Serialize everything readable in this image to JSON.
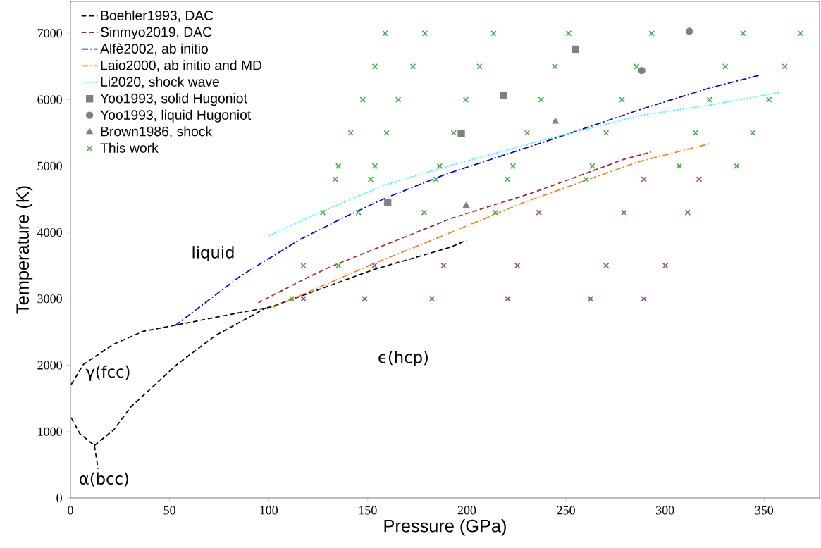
{
  "chart_data": {
    "type": "line",
    "xlabel": "Pressure (GPa)",
    "ylabel": "Temperature (K)",
    "xlim": [
      0,
      378
    ],
    "ylim": [
      0,
      7480
    ],
    "xticks": [
      0,
      50,
      100,
      150,
      200,
      250,
      300,
      350
    ],
    "yticks": [
      0,
      1000,
      2000,
      3000,
      4000,
      5000,
      6000,
      7000
    ],
    "grid": false,
    "legend": "top left",
    "series": [
      {
        "name": "Boehler1993, DAC",
        "color": "#000000",
        "line_style": "dashed",
        "x": [
          0.4,
          6.5,
          21.3,
          36.6,
          52.5,
          78.3,
          101.5,
          153,
          192,
          199.7,
          null,
          12.1,
          21.9,
          30.4,
          53.7,
          73.3,
          98.5,
          null,
          0.4,
          4.7,
          12.1,
          null,
          12.1,
          13.9
        ],
        "values": [
          1710,
          2010,
          2310,
          2510,
          2600,
          2750,
          2880,
          3440,
          3780,
          3880,
          null,
          790,
          1030,
          1370,
          2010,
          2450,
          2860,
          null,
          1210,
          970,
          790,
          null,
          790,
          440
        ]
      },
      {
        "name": "Sinmyo2019, DAC",
        "color": "#a52a2a",
        "line_style": "dashed",
        "x": [
          94.8,
          117.5,
          131,
          192,
          232.5,
          268.3,
          279,
          293
        ],
        "values": [
          2940,
          3290,
          3480,
          4210,
          4590,
          4980,
          5100,
          5210
        ]
      },
      {
        "name": "Alfè2002, ab initio",
        "color": "#0000ff",
        "line_style": "dashdot",
        "x": [
          52.5,
          85.6,
          115.6,
          138.3,
          159.1,
          189.7,
          239.7,
          287.3,
          323,
          348
        ],
        "values": [
          2590,
          3340,
          3890,
          4230,
          4520,
          4880,
          5370,
          5850,
          6180,
          6370
        ]
      },
      {
        "name": "Laio2000, ab initio and MD",
        "color": "#ff7f0e",
        "line_style": "dashdot",
        "x": [
          102.1,
          153,
          192,
          227.8,
          258.7,
          287.3,
          323
        ],
        "values": [
          2870,
          3530,
          4000,
          4440,
          4770,
          5070,
          5340
        ]
      },
      {
        "name": "Li2020, shock wave",
        "color": "#00ffff",
        "line_style": "dotted",
        "x": [
          100.3,
          127.3,
          159.1,
          192,
          239.7,
          287.3,
          323,
          358.2
        ],
        "values": [
          3950,
          4320,
          4720,
          5010,
          5400,
          5760,
          5920,
          6110
        ]
      },
      {
        "name": "Yoo1993, solid Hugoniot",
        "type": "scatter",
        "color": "#808080",
        "marker": "square",
        "x": [
          160.1,
          197.2,
          218.4,
          254.7
        ],
        "values": [
          4450,
          5490,
          6060,
          6760
        ]
      },
      {
        "name": "Yoo1993, liquid Hugoniot",
        "type": "scatter",
        "color": "#808080",
        "marker": "circle",
        "x": [
          288.3,
          312.3
        ],
        "values": [
          6440,
          7030
        ]
      },
      {
        "name": "Brown1986, shock",
        "type": "scatter",
        "color": "#808080",
        "marker": "triangle",
        "x": [
          199.7,
          244.7
        ],
        "values": [
          4400,
          5670
        ]
      },
      {
        "name": "This work",
        "type": "scatter",
        "color": "#4daf4a",
        "marker": "cross",
        "x": [
          158.8,
          178.8,
          213.5,
          251.4,
          293.3,
          339.4,
          368.4,
          153.6,
          172.8,
          206.4,
          244.4,
          285.6,
          330.4,
          360.4,
          147.5,
          165.4,
          199.5,
          237.5,
          278.3,
          322.5,
          352.5,
          141.4,
          159.5,
          193.4,
          230.4,
          270.3,
          315.4,
          344.3,
          135.2,
          153.6,
          186.3,
          223.3,
          263.3,
          307.2,
          336.2,
          133.6,
          151.5,
          184.4,
          220.4,
          260.2,
          127.3,
          145.3,
          178.5,
          214.4,
          117.5,
          135.2,
          111.6
        ],
        "values": [
          7000,
          7000,
          7000,
          7000,
          7000,
          7000,
          7000,
          6500,
          6500,
          6500,
          6500,
          6500,
          6500,
          6500,
          6000,
          6000,
          6000,
          6000,
          6000,
          6000,
          6000,
          5500,
          5500,
          5500,
          5500,
          5500,
          5500,
          5500,
          5000,
          5000,
          5000,
          5000,
          5000,
          5000,
          5000,
          4800,
          4800,
          4800,
          4800,
          4800,
          4300,
          4300,
          4300,
          4300,
          3500,
          3500,
          3000
        ]
      },
      {
        "type": "scatter",
        "color": "#984ea3",
        "marker": "cross",
        "x": [
          153.4,
          188.3,
          225.5,
          270.3,
          300.2,
          289.3,
          317.2,
          236.4,
          279.3,
          311.4,
          117.5,
          148.5,
          182.4,
          220.6,
          262.4,
          289.3
        ],
        "values": [
          3500,
          3500,
          3500,
          3500,
          3500,
          4800,
          4800,
          4300,
          4300,
          4300,
          3000,
          3000,
          3000,
          3000,
          3000,
          3000
        ]
      }
    ],
    "annotations": [
      "liquid",
      "γ(fcc)",
      "α(bcc)",
      "ϵ(hcp)"
    ]
  }
}
